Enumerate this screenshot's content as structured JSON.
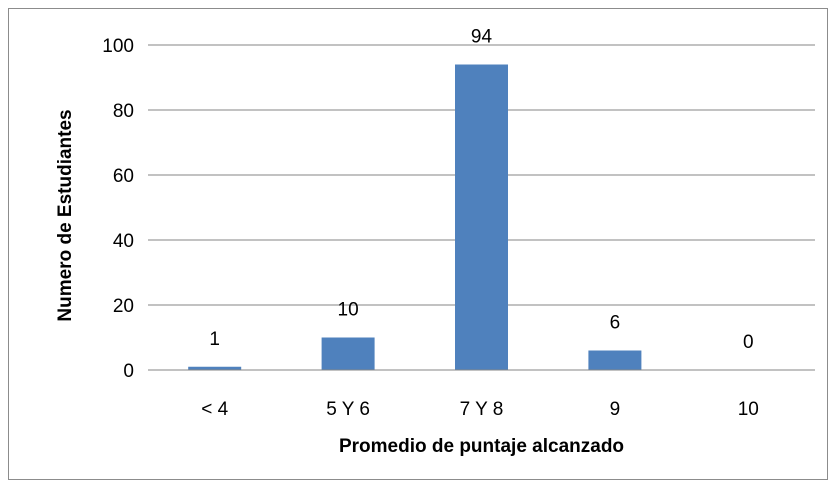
{
  "chart_data": {
    "type": "bar",
    "categories": [
      "< 4",
      "5 Y 6",
      "7 Y 8",
      "9",
      "10"
    ],
    "values": [
      1,
      10,
      94,
      6,
      0
    ],
    "data_labels": [
      "1",
      "10",
      "94",
      "6",
      "0"
    ],
    "title": "",
    "xlabel": "Promedio de puntaje alcanzado",
    "ylabel": "Numero de Estudiantes",
    "ylim": [
      0,
      100
    ],
    "yticks": [
      0,
      20,
      40,
      60,
      80,
      100
    ],
    "ytick_labels": [
      "0",
      "20",
      "40",
      "60",
      "80",
      "100"
    ],
    "grid": true,
    "legend": "none",
    "bar_color": "#4F81BD",
    "gridline_color": "#868686"
  }
}
